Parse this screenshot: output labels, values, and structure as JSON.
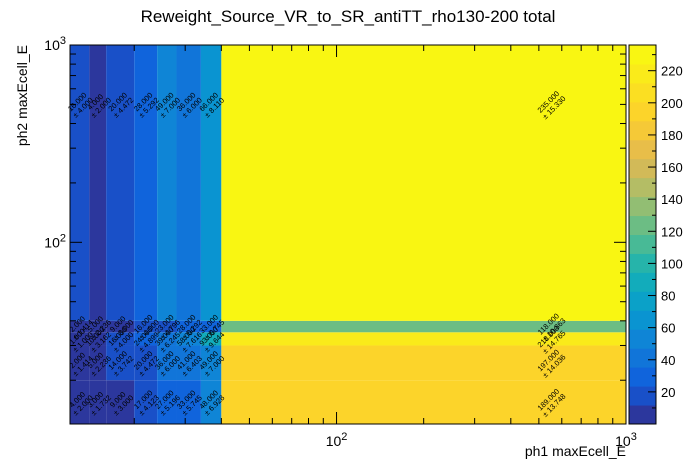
{
  "chart_data": {
    "type": "heatmap",
    "title": "Reweight_Source_VR_to_SR_antiTT_rho130-200 total",
    "xlabel": "ph1 maxEcell_E",
    "ylabel": "ph2 maxEcell_E",
    "x_scale": "log",
    "y_scale": "log",
    "xlim": [
      12,
      1000
    ],
    "ylim": [
      12,
      1000
    ],
    "x_ticks": [
      {
        "value": 100,
        "base": "10",
        "exp": "2"
      },
      {
        "value": 1000,
        "base": "10",
        "exp": "3"
      }
    ],
    "y_ticks": [
      {
        "value": 100,
        "base": "10",
        "exp": "2"
      },
      {
        "value": 1000,
        "base": "10",
        "exp": "3"
      }
    ],
    "colorbar": {
      "min": 0,
      "max": 236,
      "ticks": [
        20,
        40,
        60,
        80,
        100,
        120,
        140,
        160,
        180,
        200,
        220
      ]
    },
    "x_edges": [
      12,
      14,
      16,
      20,
      24,
      28,
      34,
      40,
      1000
    ],
    "y_edges": [
      12,
      20,
      30,
      35,
      40,
      1000
    ],
    "cells": [
      {
        "xi": 0,
        "yi": 0,
        "value": 4.0,
        "error": "± 2.000",
        "label": "4.000"
      },
      {
        "xi": 1,
        "yi": 0,
        "value": 3.0,
        "error": "± 1.732",
        "label": "3.000"
      },
      {
        "xi": 2,
        "yi": 0,
        "value": 9.0,
        "error": "± 3.000",
        "label": "9.000"
      },
      {
        "xi": 3,
        "yi": 0,
        "value": 17.0,
        "error": "± 4.123",
        "label": "17.000"
      },
      {
        "xi": 4,
        "yi": 0,
        "value": 27.0,
        "error": "± 5.196",
        "label": "27.000"
      },
      {
        "xi": 5,
        "yi": 0,
        "value": 33.0,
        "error": "± 5.745",
        "label": "33.000"
      },
      {
        "xi": 6,
        "yi": 0,
        "value": 48.0,
        "error": "± 6.928",
        "label": "48.000"
      },
      {
        "xi": 7,
        "yi": 0,
        "value": 189.0,
        "error": "± 13.748",
        "label": "189.000"
      },
      {
        "xi": 0,
        "yi": 1,
        "value": 2.0,
        "error": "± 1.414",
        "label": "2.000"
      },
      {
        "xi": 1,
        "yi": 1,
        "value": 5.0,
        "error": "± 2.236",
        "label": "5.000"
      },
      {
        "xi": 2,
        "yi": 1,
        "value": 14.0,
        "error": "± 3.742",
        "label": "14.000"
      },
      {
        "xi": 3,
        "yi": 1,
        "value": 20.0,
        "error": "± 4.472",
        "label": "20.000"
      },
      {
        "xi": 4,
        "yi": 1,
        "value": 36.0,
        "error": "± 6.000",
        "label": "36.000"
      },
      {
        "xi": 5,
        "yi": 1,
        "value": 41.0,
        "error": "± 6.403",
        "label": "41.000"
      },
      {
        "xi": 6,
        "yi": 1,
        "value": 49.0,
        "error": "± 7.000",
        "label": "49.000"
      },
      {
        "xi": 7,
        "yi": 1,
        "value": 197.0,
        "error": "± 14.036",
        "label": "197.000"
      },
      {
        "xi": 0,
        "yi": 2,
        "value": 1.0,
        "error": "± 1.000",
        "label": "1.000"
      },
      {
        "xi": 1,
        "yi": 2,
        "value": 10.0,
        "error": "± 3.162",
        "label": "10.000"
      },
      {
        "xi": 2,
        "yi": 2,
        "value": 16.0,
        "error": "± 4.000",
        "label": "16.000"
      },
      {
        "xi": 3,
        "yi": 2,
        "value": 24.0,
        "error": "± 4.899",
        "label": "24.000"
      },
      {
        "xi": 4,
        "yi": 2,
        "value": 39.0,
        "error": "± 6.245",
        "label": "39.000"
      },
      {
        "xi": 5,
        "yi": 2,
        "value": 58.0,
        "error": "± 7.616",
        "label": "58.000"
      },
      {
        "xi": 6,
        "yi": 2,
        "value": 93.0,
        "error": "± 9.644",
        "label": "93.000"
      },
      {
        "xi": 7,
        "yi": 2,
        "value": 218.0,
        "error": "± 14.765",
        "label": "218.000"
      },
      {
        "xi": 0,
        "yi": 3,
        "value": 2.0,
        "error": "± 1.414",
        "label": "2.000"
      },
      {
        "xi": 1,
        "yi": 3,
        "value": 5.0,
        "error": "± 2.236",
        "label": "5.000"
      },
      {
        "xi": 2,
        "yi": 3,
        "value": 9.0,
        "error": "± 3.000",
        "label": "9.000"
      },
      {
        "xi": 3,
        "yi": 3,
        "value": 16.0,
        "error": "± 4.000",
        "label": "16.000"
      },
      {
        "xi": 4,
        "yi": 3,
        "value": 23.0,
        "error": "± 4.796",
        "label": "23.000"
      },
      {
        "xi": 5,
        "yi": 3,
        "value": 28.0,
        "error": "± 5.292",
        "label": "28.000"
      },
      {
        "xi": 6,
        "yi": 3,
        "value": 33.0,
        "error": "± 5.745",
        "label": "33.000"
      },
      {
        "xi": 7,
        "yi": 3,
        "value": 118.0,
        "error": "± 10.863",
        "label": "118.000"
      },
      {
        "xi": 0,
        "yi": 4,
        "value": 16.0,
        "error": "± 4.000",
        "label": "16.000"
      },
      {
        "xi": 1,
        "yi": 4,
        "value": 4.0,
        "error": "± 2.000",
        "label": "4.000"
      },
      {
        "xi": 2,
        "yi": 4,
        "value": 20.0,
        "error": "± 4.472",
        "label": "20.000"
      },
      {
        "xi": 3,
        "yi": 4,
        "value": 28.0,
        "error": "± 5.292",
        "label": "28.000"
      },
      {
        "xi": 4,
        "yi": 4,
        "value": 49.0,
        "error": "± 7.000",
        "label": "49.000"
      },
      {
        "xi": 5,
        "yi": 4,
        "value": 36.0,
        "error": "± 6.000",
        "label": "36.000"
      },
      {
        "xi": 6,
        "yi": 4,
        "value": 66.0,
        "error": "± 8.110",
        "label": "66.000"
      },
      {
        "xi": 7,
        "yi": 4,
        "value": 235.0,
        "error": "± 15.330",
        "label": "235.000"
      }
    ]
  }
}
